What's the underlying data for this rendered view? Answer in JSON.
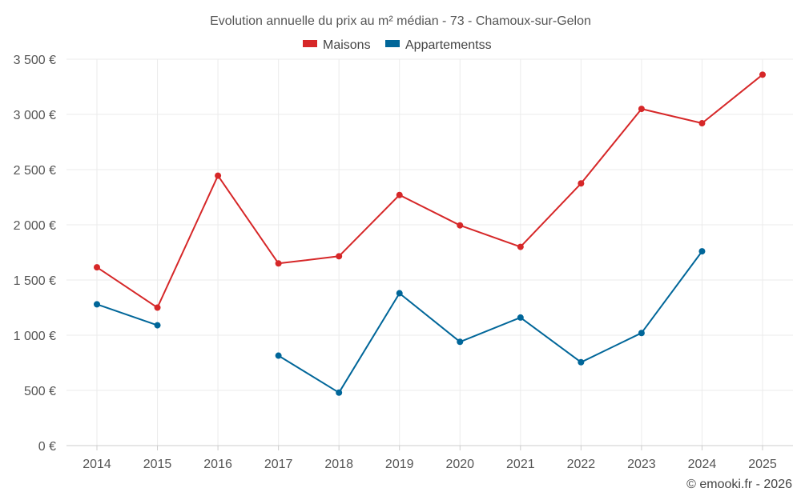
{
  "chart_data": {
    "type": "line",
    "title": "Evolution annuelle du prix au m² médian - 73 - Chamoux-sur-Gelon",
    "categories": [
      "2014",
      "2015",
      "2016",
      "2017",
      "2018",
      "2019",
      "2020",
      "2021",
      "2022",
      "2023",
      "2024",
      "2025"
    ],
    "series": [
      {
        "name": "Maisons",
        "color": "#d62728",
        "values": [
          1615,
          1250,
          2445,
          1650,
          1715,
          2270,
          1995,
          1800,
          2375,
          3050,
          2920,
          3360
        ]
      },
      {
        "name": "Appartementss",
        "color": "#006699",
        "values": [
          1280,
          1090,
          null,
          815,
          480,
          1380,
          940,
          1160,
          755,
          1020,
          1760,
          null
        ]
      }
    ],
    "ylim": [
      0,
      3500
    ],
    "yticks": [
      0,
      500,
      1000,
      1500,
      2000,
      2500,
      3000,
      3500
    ],
    "ytick_labels": [
      "0 €",
      "500 €",
      "1 000 €",
      "1 500 €",
      "2 000 €",
      "2 500 €",
      "3 000 €",
      "3 500 €"
    ],
    "xlabel": "",
    "ylabel": "",
    "legend_position": "top-center",
    "grid": true
  },
  "credit": "© emooki.fr - 2026"
}
